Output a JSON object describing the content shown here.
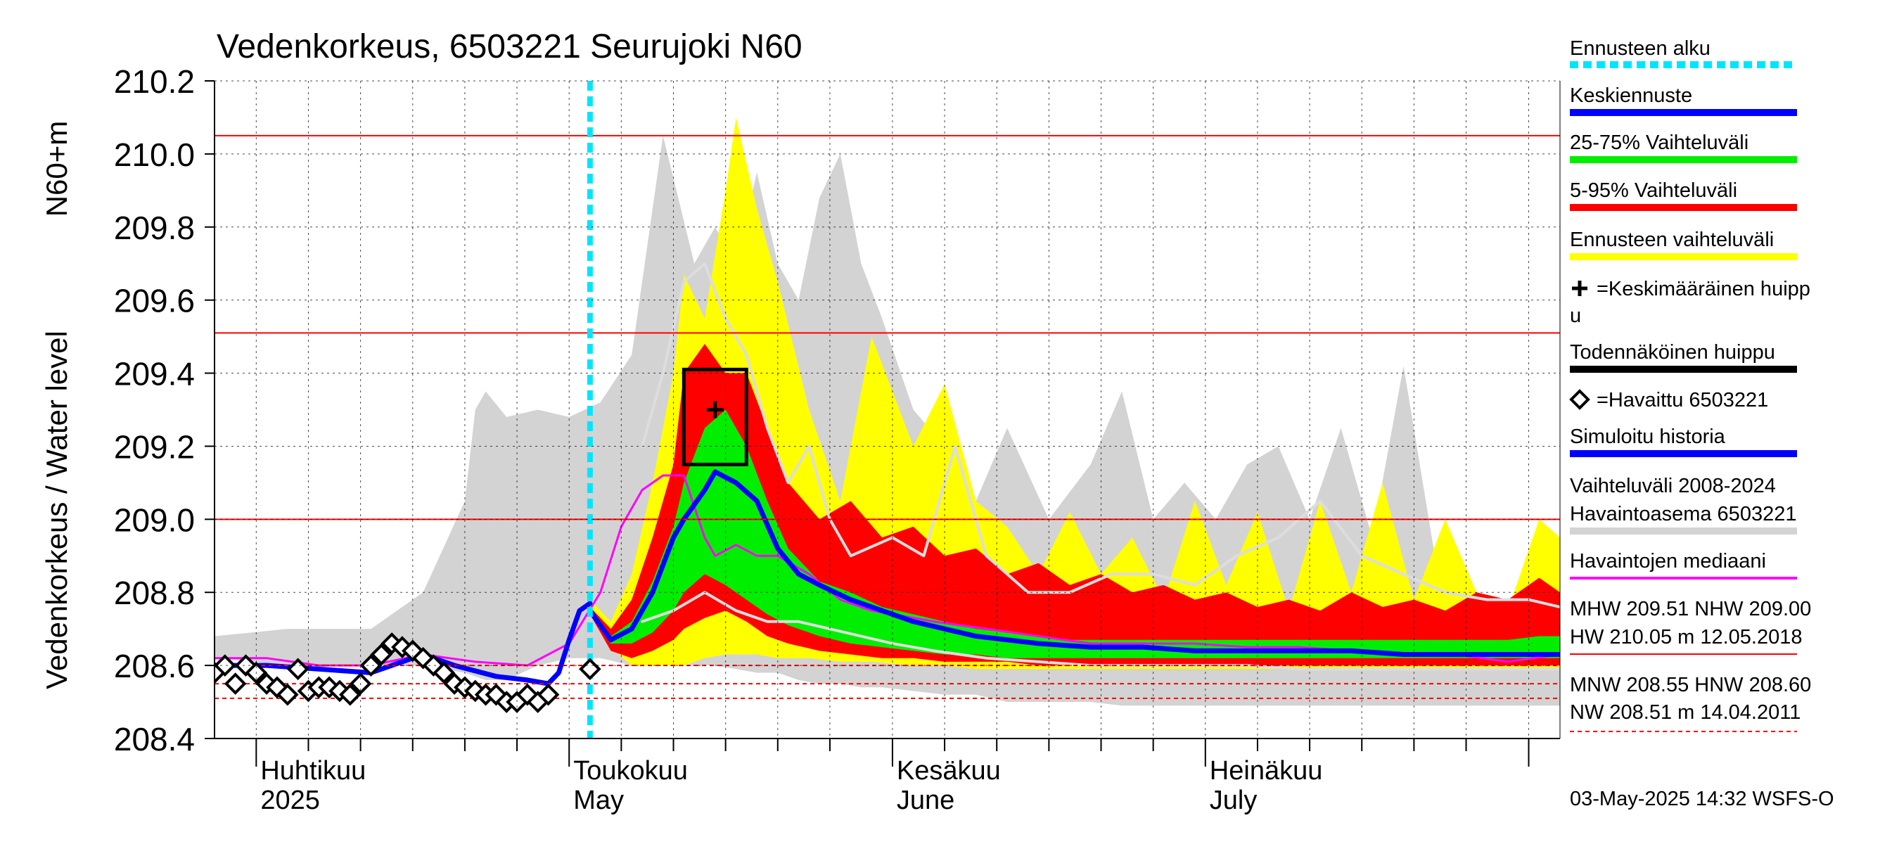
{
  "chart_data": {
    "type": "area",
    "title": "Vedenkorkeus, 6503221 Seurujoki N60",
    "ylabel_top": "N60+m",
    "ylabel": "Vedenkorkeus / Water level",
    "ylim": [
      208.4,
      210.2
    ],
    "yticks": [
      "208.4",
      "208.6",
      "208.8",
      "209.0",
      "209.2",
      "209.4",
      "209.6",
      "209.8",
      "210.0",
      "210.2"
    ],
    "x_start": "2025-03-28",
    "x_end": "2025-08-04",
    "forecast_start": "2025-05-03",
    "month_labels": [
      {
        "date": "2025-04-01",
        "fi": "Huhtikuu",
        "en": "2025"
      },
      {
        "date": "2025-05-01",
        "fi": "Toukokuu",
        "en": "May"
      },
      {
        "date": "2025-06-01",
        "fi": "Kesäkuu",
        "en": "June"
      },
      {
        "date": "2025-07-01",
        "fi": "Heinäkuu",
        "en": "July"
      }
    ],
    "reference_lines": [
      {
        "name": "HW",
        "value": 210.05,
        "style": "solid"
      },
      {
        "name": "MHW",
        "value": 209.51,
        "style": "solid"
      },
      {
        "name": "NHW",
        "value": 209.0,
        "style": "solid"
      },
      {
        "name": "HNW",
        "value": 208.6,
        "style": "dashed"
      },
      {
        "name": "MNW",
        "value": 208.55,
        "style": "dashed"
      },
      {
        "name": "NW",
        "value": 208.51,
        "style": "dashed"
      }
    ],
    "historical_range": {
      "dates": [
        "2025-03-28",
        "2025-04-04",
        "2025-04-12",
        "2025-04-17",
        "2025-04-21",
        "2025-04-22",
        "2025-04-23",
        "2025-04-25",
        "2025-04-28",
        "2025-05-01",
        "2025-05-04",
        "2025-05-07",
        "2025-05-10",
        "2025-05-13",
        "2025-05-15",
        "2025-05-17",
        "2025-05-19",
        "2025-05-21",
        "2025-05-23",
        "2025-05-25",
        "2025-05-27",
        "2025-05-29",
        "2025-05-31",
        "2025-06-03",
        "2025-06-06",
        "2025-06-09",
        "2025-06-12",
        "2025-06-16",
        "2025-06-20",
        "2025-06-23",
        "2025-06-26",
        "2025-06-29",
        "2025-07-02",
        "2025-07-05",
        "2025-07-08",
        "2025-07-11",
        "2025-07-14",
        "2025-07-17",
        "2025-07-20",
        "2025-07-23",
        "2025-07-26",
        "2025-07-30",
        "2025-08-04"
      ],
      "upper": [
        208.68,
        208.7,
        208.7,
        208.8,
        209.05,
        209.3,
        209.35,
        209.28,
        209.3,
        209.28,
        209.32,
        209.45,
        210.05,
        209.7,
        209.8,
        209.7,
        209.95,
        209.7,
        209.6,
        209.88,
        210.0,
        209.7,
        209.55,
        209.3,
        209.2,
        209.05,
        209.25,
        209.0,
        209.15,
        209.35,
        209.0,
        209.1,
        209.0,
        209.15,
        209.2,
        209.0,
        209.25,
        208.95,
        209.42,
        208.9,
        208.8,
        208.75,
        208.68
      ],
      "lower": [
        208.62,
        208.6,
        208.6,
        208.6,
        208.58,
        208.57,
        208.56,
        208.56,
        208.6,
        208.62,
        208.62,
        208.6,
        208.62,
        208.6,
        208.6,
        208.59,
        208.58,
        208.58,
        208.56,
        208.55,
        208.55,
        208.54,
        208.54,
        208.53,
        208.52,
        208.52,
        208.5,
        208.5,
        208.5,
        208.49,
        208.49,
        208.49,
        208.49,
        208.49,
        208.49,
        208.49,
        208.49,
        208.49,
        208.49,
        208.49,
        208.49,
        208.49,
        208.49
      ]
    },
    "forecast_range": {
      "dates": [
        "2025-05-03",
        "2025-05-05",
        "2025-05-07",
        "2025-05-09",
        "2025-05-11",
        "2025-05-12",
        "2025-05-14",
        "2025-05-16",
        "2025-05-17",
        "2025-05-19",
        "2025-05-21",
        "2025-05-24",
        "2025-05-27",
        "2025-05-30",
        "2025-06-03",
        "2025-06-06",
        "2025-06-09",
        "2025-06-12",
        "2025-06-15",
        "2025-06-18",
        "2025-06-21",
        "2025-06-24",
        "2025-06-27",
        "2025-06-30",
        "2025-07-03",
        "2025-07-06",
        "2025-07-09",
        "2025-07-12",
        "2025-07-15",
        "2025-07-18",
        "2025-07-21",
        "2025-07-24",
        "2025-07-27",
        "2025-07-30",
        "2025-08-02",
        "2025-08-04"
      ],
      "upper": [
        208.78,
        208.72,
        208.85,
        209.1,
        209.4,
        209.67,
        209.55,
        209.9,
        210.1,
        209.85,
        209.65,
        209.3,
        209.05,
        209.5,
        209.2,
        209.37,
        209.05,
        208.98,
        208.85,
        209.02,
        208.85,
        208.95,
        208.78,
        209.05,
        208.82,
        209.02,
        208.75,
        209.05,
        208.8,
        209.1,
        208.78,
        209.0,
        208.8,
        208.75,
        209.0,
        208.95
      ],
      "lower": [
        208.75,
        208.65,
        208.6,
        208.6,
        208.6,
        208.6,
        208.62,
        208.63,
        208.63,
        208.63,
        208.62,
        208.62,
        208.61,
        208.61,
        208.6,
        208.6,
        208.59,
        208.59,
        208.59,
        208.59,
        208.59,
        208.59,
        208.59,
        208.59,
        208.59,
        208.59,
        208.59,
        208.59,
        208.59,
        208.59,
        208.59,
        208.59,
        208.59,
        208.59,
        208.59,
        208.59
      ]
    },
    "band_5_95": {
      "dates": [
        "2025-05-03",
        "2025-05-05",
        "2025-05-07",
        "2025-05-09",
        "2025-05-11",
        "2025-05-12",
        "2025-05-14",
        "2025-05-16",
        "2025-05-18",
        "2025-05-20",
        "2025-05-22",
        "2025-05-25",
        "2025-05-28",
        "2025-05-31",
        "2025-06-03",
        "2025-06-06",
        "2025-06-09",
        "2025-06-12",
        "2025-06-15",
        "2025-06-18",
        "2025-06-21",
        "2025-06-24",
        "2025-06-27",
        "2025-06-30",
        "2025-07-03",
        "2025-07-06",
        "2025-07-09",
        "2025-07-12",
        "2025-07-15",
        "2025-07-18",
        "2025-07-21",
        "2025-07-24",
        "2025-07-27",
        "2025-07-30",
        "2025-08-02",
        "2025-08-04"
      ],
      "upper": [
        208.76,
        208.7,
        208.78,
        208.95,
        209.15,
        209.4,
        209.48,
        209.4,
        209.4,
        209.25,
        209.1,
        209.0,
        209.05,
        208.95,
        208.98,
        208.9,
        208.92,
        208.85,
        208.88,
        208.82,
        208.85,
        208.8,
        208.82,
        208.78,
        208.8,
        208.76,
        208.78,
        208.75,
        208.8,
        208.76,
        208.78,
        208.75,
        208.8,
        208.78,
        208.84,
        208.8
      ],
      "lower": [
        208.74,
        208.64,
        208.62,
        208.64,
        208.67,
        208.7,
        208.73,
        208.75,
        208.72,
        208.68,
        208.66,
        208.64,
        208.63,
        208.62,
        208.62,
        208.61,
        208.61,
        208.61,
        208.6,
        208.6,
        208.6,
        208.6,
        208.6,
        208.6,
        208.6,
        208.6,
        208.6,
        208.6,
        208.6,
        208.6,
        208.6,
        208.6,
        208.6,
        208.6,
        208.6,
        208.6
      ]
    },
    "band_25_75": {
      "dates": [
        "2025-05-03",
        "2025-05-05",
        "2025-05-07",
        "2025-05-09",
        "2025-05-11",
        "2025-05-12",
        "2025-05-14",
        "2025-05-16",
        "2025-05-18",
        "2025-05-20",
        "2025-05-22",
        "2025-05-25",
        "2025-05-28",
        "2025-05-31",
        "2025-06-03",
        "2025-06-06",
        "2025-06-09",
        "2025-06-12",
        "2025-06-15",
        "2025-06-18",
        "2025-06-21",
        "2025-06-24",
        "2025-06-27",
        "2025-06-30",
        "2025-07-03",
        "2025-07-06",
        "2025-07-09",
        "2025-07-12",
        "2025-07-15",
        "2025-07-18",
        "2025-07-21",
        "2025-07-24",
        "2025-07-27",
        "2025-07-30",
        "2025-08-02",
        "2025-08-04"
      ],
      "upper": [
        208.75,
        208.68,
        208.72,
        208.83,
        208.98,
        209.1,
        209.25,
        209.3,
        209.2,
        209.05,
        208.92,
        208.83,
        208.8,
        208.76,
        208.74,
        208.72,
        208.7,
        208.69,
        208.68,
        208.67,
        208.67,
        208.67,
        208.67,
        208.67,
        208.67,
        208.67,
        208.67,
        208.67,
        208.67,
        208.67,
        208.67,
        208.67,
        208.67,
        208.67,
        208.68,
        208.68
      ],
      "lower": [
        208.74,
        208.66,
        208.66,
        208.69,
        208.75,
        208.8,
        208.85,
        208.82,
        208.78,
        208.74,
        208.71,
        208.68,
        208.66,
        208.65,
        208.64,
        208.63,
        208.63,
        208.62,
        208.62,
        208.62,
        208.62,
        208.62,
        208.62,
        208.62,
        208.62,
        208.62,
        208.62,
        208.62,
        208.62,
        208.62,
        208.62,
        208.62,
        208.62,
        208.62,
        208.62,
        208.62
      ]
    },
    "series": [
      {
        "name": "Keskiennuste",
        "color": "#0000ff",
        "x": [
          "2025-05-03",
          "2025-05-05",
          "2025-05-07",
          "2025-05-09",
          "2025-05-11",
          "2025-05-12",
          "2025-05-14",
          "2025-05-15",
          "2025-05-17",
          "2025-05-19",
          "2025-05-21",
          "2025-05-23",
          "2025-05-25",
          "2025-05-28",
          "2025-05-31",
          "2025-06-03",
          "2025-06-06",
          "2025-06-09",
          "2025-06-12",
          "2025-06-15",
          "2025-06-20",
          "2025-06-25",
          "2025-06-30",
          "2025-07-05",
          "2025-07-10",
          "2025-07-15",
          "2025-07-20",
          "2025-07-25",
          "2025-07-30",
          "2025-08-04"
        ],
        "y": [
          208.75,
          208.67,
          208.7,
          208.8,
          208.95,
          209.0,
          209.08,
          209.13,
          209.1,
          209.05,
          208.92,
          208.85,
          208.82,
          208.78,
          208.75,
          208.72,
          208.7,
          208.68,
          208.67,
          208.66,
          208.65,
          208.65,
          208.64,
          208.64,
          208.64,
          208.64,
          208.63,
          208.63,
          208.63,
          208.63
        ]
      },
      {
        "name": "Simuloitu historia",
        "color": "#0000ff",
        "x": [
          "2025-03-28",
          "2025-04-02",
          "2025-04-07",
          "2025-04-12",
          "2025-04-17",
          "2025-04-20",
          "2025-04-24",
          "2025-04-27",
          "2025-04-29",
          "2025-04-30",
          "2025-05-01",
          "2025-05-02",
          "2025-05-03"
        ],
        "y": [
          208.6,
          208.6,
          208.59,
          208.58,
          208.63,
          208.6,
          208.57,
          208.56,
          208.55,
          208.58,
          208.67,
          208.75,
          208.77
        ]
      },
      {
        "name": "Havaintojen mediaani",
        "color": "#ff00ff",
        "x": [
          "2025-03-28",
          "2025-04-02",
          "2025-04-07",
          "2025-04-12",
          "2025-04-17",
          "2025-04-22",
          "2025-04-27",
          "2025-05-01",
          "2025-05-04",
          "2025-05-06",
          "2025-05-08",
          "2025-05-10",
          "2025-05-12",
          "2025-05-14",
          "2025-05-15",
          "2025-05-17",
          "2025-05-19",
          "2025-05-21",
          "2025-05-24",
          "2025-05-27",
          "2025-05-30",
          "2025-06-05",
          "2025-06-10",
          "2025-06-15",
          "2025-06-20",
          "2025-06-25",
          "2025-06-30",
          "2025-07-05",
          "2025-07-10",
          "2025-07-15",
          "2025-07-20",
          "2025-07-25",
          "2025-07-30",
          "2025-08-04"
        ],
        "y": [
          208.62,
          208.62,
          208.6,
          208.6,
          208.63,
          208.61,
          208.6,
          208.66,
          208.8,
          208.98,
          209.08,
          209.12,
          209.12,
          208.95,
          208.9,
          208.93,
          208.9,
          208.9,
          208.85,
          208.78,
          208.75,
          208.72,
          208.7,
          208.68,
          208.66,
          208.66,
          208.66,
          208.65,
          208.65,
          208.64,
          208.63,
          208.63,
          208.61,
          208.63
        ]
      },
      {
        "name": "Havaintoasema 6503221 2018",
        "color": "#dddddd",
        "x": [
          "2025-05-08",
          "2025-05-10",
          "2025-05-12",
          "2025-05-14",
          "2025-05-16",
          "2025-05-18",
          "2025-05-20",
          "2025-05-22",
          "2025-05-24",
          "2025-05-26",
          "2025-05-28",
          "2025-06-01",
          "2025-06-04",
          "2025-06-07",
          "2025-06-10",
          "2025-06-14",
          "2025-06-18",
          "2025-06-22",
          "2025-06-26",
          "2025-06-30",
          "2025-07-04",
          "2025-07-08",
          "2025-07-12",
          "2025-07-16",
          "2025-07-20",
          "2025-07-24",
          "2025-07-28",
          "2025-08-01",
          "2025-08-04"
        ],
        "y": [
          209.2,
          209.4,
          209.65,
          209.7,
          209.55,
          209.45,
          209.25,
          209.1,
          209.2,
          209.0,
          208.9,
          208.95,
          208.9,
          209.2,
          208.9,
          208.8,
          208.8,
          208.85,
          208.85,
          208.82,
          208.9,
          208.95,
          209.05,
          208.9,
          208.85,
          208.8,
          208.78,
          208.78,
          208.76
        ]
      },
      {
        "name": "Havaintoasema 6503221 2011",
        "color": "#dddddd",
        "x": [
          "2025-05-08",
          "2025-05-11",
          "2025-05-14",
          "2025-05-17",
          "2025-05-20",
          "2025-05-23",
          "2025-05-26",
          "2025-05-29",
          "2025-06-01",
          "2025-06-05",
          "2025-06-10",
          "2025-06-15",
          "2025-06-20",
          "2025-06-25",
          "2025-06-30",
          "2025-07-05",
          "2025-07-10",
          "2025-07-15",
          "2025-07-20",
          "2025-07-25",
          "2025-07-30",
          "2025-08-04"
        ],
        "y": [
          208.72,
          208.75,
          208.8,
          208.75,
          208.72,
          208.72,
          208.7,
          208.68,
          208.66,
          208.64,
          208.62,
          208.61,
          208.6,
          208.6,
          208.6,
          208.6,
          208.59,
          208.59,
          208.59,
          208.59,
          208.59,
          208.59
        ]
      }
    ],
    "observed": {
      "name": "Havaittu 6503221",
      "x": [
        "2025-03-28",
        "2025-03-29",
        "2025-03-30",
        "2025-03-31",
        "2025-04-01",
        "2025-04-02",
        "2025-04-03",
        "2025-04-04",
        "2025-04-05",
        "2025-04-06",
        "2025-04-07",
        "2025-04-08",
        "2025-04-09",
        "2025-04-10",
        "2025-04-11",
        "2025-04-12",
        "2025-04-13",
        "2025-04-14",
        "2025-04-15",
        "2025-04-16",
        "2025-04-17",
        "2025-04-18",
        "2025-04-19",
        "2025-04-20",
        "2025-04-21",
        "2025-04-22",
        "2025-04-23",
        "2025-04-24",
        "2025-04-25",
        "2025-04-26",
        "2025-04-27",
        "2025-04-28",
        "2025-04-29",
        "2025-05-03"
      ],
      "y": [
        208.58,
        208.6,
        208.55,
        208.6,
        208.58,
        208.55,
        208.54,
        208.52,
        208.59,
        208.53,
        208.54,
        208.54,
        208.53,
        208.52,
        208.55,
        208.6,
        208.63,
        208.66,
        208.65,
        208.64,
        208.62,
        208.6,
        208.58,
        208.55,
        208.54,
        208.53,
        208.52,
        208.52,
        208.5,
        208.5,
        208.52,
        208.5,
        208.52,
        208.59
      ]
    },
    "mean_peak": {
      "date": "2025-05-15",
      "value": 209.3
    },
    "probable_peak_box": {
      "x": [
        "2025-05-12",
        "2025-05-18"
      ],
      "y": [
        209.15,
        209.41
      ]
    },
    "annotations": {
      "stats_line1": "MHW 209.51 NHW 209.00",
      "stats_line2": "HW 210.05 m 12.05.2018",
      "stats_line3": "MNW 208.55 HNW 208.60",
      "stats_line4": "NW 208.51 m 14.04.2011"
    },
    "footer": "03-May-2025 14:32 WSFS-O",
    "legend": {
      "placement": "right",
      "items": [
        {
          "label": "Ennusteen alku",
          "color": "#00e5ff",
          "style": "dotted"
        },
        {
          "label": "Keskiennuste",
          "color": "#0000ff",
          "style": "thick"
        },
        {
          "label": "25-75% Vaihteluväli",
          "color": "#00ee00",
          "style": "thick"
        },
        {
          "label": "5-95% Vaihteluväli",
          "color": "#ff0000",
          "style": "thick"
        },
        {
          "label": "Ennusteen vaihteluväli",
          "color": "#ffff00",
          "style": "thick"
        },
        {
          "label": "=Keskimääräinen huipp",
          "label2": "u",
          "color": "#000000",
          "style": "plus"
        },
        {
          "label": "Todennäköinen huippu",
          "color": "#000000",
          "style": "thick"
        },
        {
          "label": "=Havaittu 6503221",
          "color": "#000000",
          "style": "diamond"
        },
        {
          "label": "Simuloitu historia",
          "color": "#0000ff",
          "style": "thick"
        },
        {
          "label": "Vaihteluväli 2008-2024",
          "label2": " Havaintoasema 6503221",
          "color": "#d3d3d3",
          "style": "thick"
        },
        {
          "label": "Havaintojen mediaani",
          "color": "#ff00ff",
          "style": "thin"
        }
      ]
    }
  }
}
